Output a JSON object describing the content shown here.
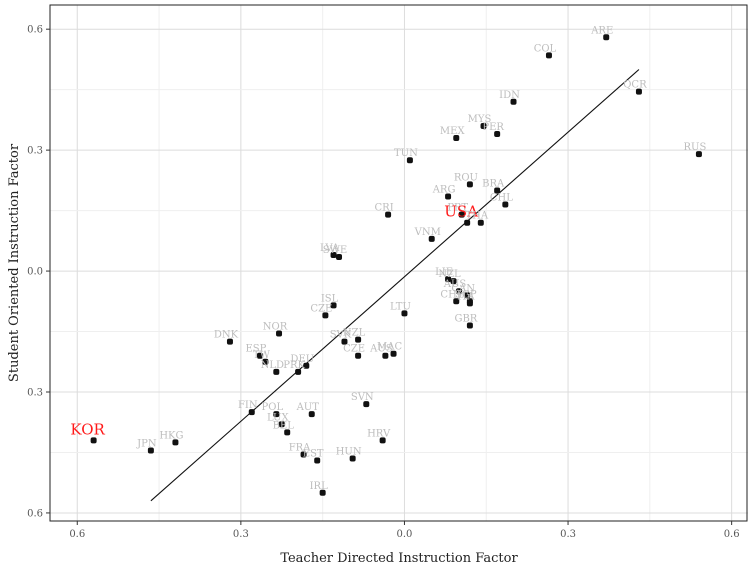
{
  "chart_data": {
    "type": "scatter",
    "xlabel": "Teacher Directed Instruction Factor",
    "ylabel": "Student Oriented Instruction Factor",
    "x_ticks": [
      {
        "value": -0.6,
        "label": "0.6"
      },
      {
        "value": -0.3,
        "label": "0.3"
      },
      {
        "value": 0.0,
        "label": "0.0"
      },
      {
        "value": 0.3,
        "label": "0.3"
      },
      {
        "value": 0.6,
        "label": "0.6"
      }
    ],
    "y_ticks": [
      {
        "value": 0.6,
        "label": "0.6"
      },
      {
        "value": 0.3,
        "label": "0.3"
      },
      {
        "value": 0.0,
        "label": "0.0"
      },
      {
        "value": -0.3,
        "label": "0.3"
      },
      {
        "value": -0.6,
        "label": "0.6"
      }
    ],
    "xlim": [
      -0.65,
      0.63
    ],
    "ylim": [
      -0.62,
      0.66
    ],
    "grid": true,
    "highlight_color": "#ff1a1a",
    "label_color": "#bdbdbd",
    "points": [
      {
        "label": "ARE",
        "x": 0.37,
        "y": 0.58
      },
      {
        "label": "COL",
        "x": 0.265,
        "y": 0.535
      },
      {
        "label": "QCR",
        "x": 0.43,
        "y": 0.445
      },
      {
        "label": "IDN",
        "x": 0.2,
        "y": 0.42
      },
      {
        "label": "MYS",
        "x": 0.145,
        "y": 0.36
      },
      {
        "label": "PER",
        "x": 0.17,
        "y": 0.34
      },
      {
        "label": "MEX",
        "x": 0.095,
        "y": 0.33
      },
      {
        "label": "RUS",
        "x": 0.54,
        "y": 0.29
      },
      {
        "label": "TUN",
        "x": 0.01,
        "y": 0.275
      },
      {
        "label": "ROU",
        "x": 0.12,
        "y": 0.215
      },
      {
        "label": "BRA",
        "x": 0.17,
        "y": 0.2
      },
      {
        "label": "ARG",
        "x": 0.08,
        "y": 0.185
      },
      {
        "label": "CHL",
        "x": 0.185,
        "y": 0.165
      },
      {
        "label": "PRT",
        "x": 0.105,
        "y": 0.14
      },
      {
        "label": "CRI",
        "x": -0.03,
        "y": 0.14
      },
      {
        "label": "USA",
        "x": 0.115,
        "y": 0.12,
        "highlight": true
      },
      {
        "label": "THA",
        "x": 0.14,
        "y": 0.12
      },
      {
        "label": "VNM",
        "x": 0.05,
        "y": 0.08
      },
      {
        "label": "LVA",
        "x": -0.13,
        "y": 0.04
      },
      {
        "label": "SWE",
        "x": -0.12,
        "y": 0.035
      },
      {
        "label": "LIE",
        "x": 0.08,
        "y": -0.02
      },
      {
        "label": "NZL",
        "x": 0.09,
        "y": -0.025
      },
      {
        "label": "AUS",
        "x": 0.1,
        "y": -0.05
      },
      {
        "label": "CAN",
        "x": 0.115,
        "y": -0.06
      },
      {
        "label": "SGP",
        "x": 0.12,
        "y": -0.075
      },
      {
        "label": "CHE",
        "x": 0.095,
        "y": -0.075
      },
      {
        "label": "ITA",
        "x": 0.12,
        "y": -0.08
      },
      {
        "label": "ISL",
        "x": -0.13,
        "y": -0.085
      },
      {
        "label": "CZE",
        "x": -0.145,
        "y": -0.11
      },
      {
        "label": "LTU",
        "x": 0.0,
        "y": -0.105
      },
      {
        "label": "GBR",
        "x": 0.12,
        "y": -0.135
      },
      {
        "label": "NOR",
        "x": -0.23,
        "y": -0.155
      },
      {
        "label": "DNK",
        "x": -0.32,
        "y": -0.175
      },
      {
        "label": "SVK",
        "x": -0.11,
        "y": -0.175
      },
      {
        "label": "NZL",
        "x": -0.085,
        "y": -0.17
      },
      {
        "label": "CZE",
        "x": -0.085,
        "y": -0.21
      },
      {
        "label": "AUS",
        "x": -0.035,
        "y": -0.21
      },
      {
        "label": "MAC",
        "x": -0.02,
        "y": -0.205
      },
      {
        "label": "ESP",
        "x": -0.265,
        "y": -0.21
      },
      {
        "label": "TW",
        "x": -0.255,
        "y": -0.225
      },
      {
        "label": "NLD",
        "x": -0.235,
        "y": -0.25
      },
      {
        "label": "DEU",
        "x": -0.18,
        "y": -0.235
      },
      {
        "label": "PRK",
        "x": -0.195,
        "y": -0.25
      },
      {
        "label": "SVN",
        "x": -0.07,
        "y": -0.33
      },
      {
        "label": "FIN",
        "x": -0.28,
        "y": -0.35
      },
      {
        "label": "POL",
        "x": -0.235,
        "y": -0.355
      },
      {
        "label": "AUT",
        "x": -0.17,
        "y": -0.355
      },
      {
        "label": "LUX",
        "x": -0.225,
        "y": -0.38
      },
      {
        "label": "BEL",
        "x": -0.215,
        "y": -0.4
      },
      {
        "label": "HRV",
        "x": -0.04,
        "y": -0.42
      },
      {
        "label": "KOR",
        "x": -0.57,
        "y": -0.42,
        "highlight": true
      },
      {
        "label": "HKG",
        "x": -0.42,
        "y": -0.425
      },
      {
        "label": "JPN",
        "x": -0.465,
        "y": -0.445
      },
      {
        "label": "FRA",
        "x": -0.185,
        "y": -0.455
      },
      {
        "label": "EST",
        "x": -0.16,
        "y": -0.47
      },
      {
        "label": "HUN",
        "x": -0.095,
        "y": -0.465
      },
      {
        "label": "IRL",
        "x": -0.15,
        "y": -0.55
      }
    ],
    "trend_line": {
      "x": [
        -0.465,
        0.43
      ],
      "y": [
        -0.57,
        0.5
      ]
    }
  }
}
